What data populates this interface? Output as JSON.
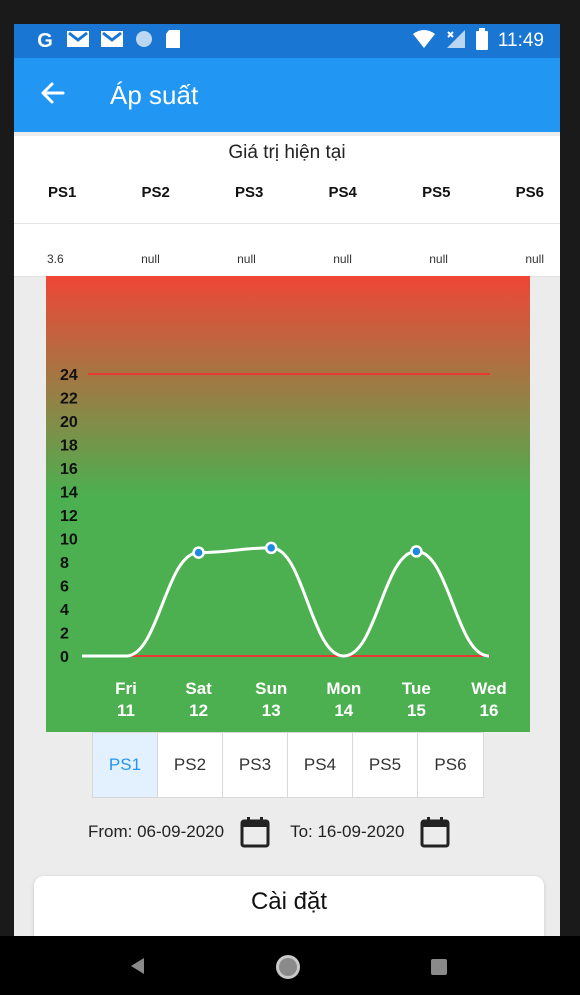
{
  "status_bar": {
    "icons": [
      "google-icon",
      "gmail-icon",
      "gmail-icon",
      "circle-icon",
      "sd-card-icon"
    ],
    "left_glyphs": [
      "G",
      "M",
      "M",
      "",
      ""
    ],
    "time": "11:49"
  },
  "app_bar": {
    "title": "Áp suất"
  },
  "current_values": {
    "title": "Giá trị hiện tại",
    "headers": [
      "PS1",
      "PS2",
      "PS3",
      "PS4",
      "PS5",
      "PS6"
    ],
    "values": [
      "3.6",
      "null",
      "null",
      "null",
      "null",
      "null"
    ]
  },
  "chart_data": {
    "type": "line",
    "x_labels": [
      {
        "day": "Fri",
        "date": "11"
      },
      {
        "day": "Sat",
        "date": "12"
      },
      {
        "day": "Sun",
        "date": "13"
      },
      {
        "day": "Mon",
        "date": "14"
      },
      {
        "day": "Tue",
        "date": "15"
      },
      {
        "day": "Wed",
        "date": "16"
      }
    ],
    "y_ticks": [
      "0",
      "2",
      "4",
      "6",
      "8",
      "10",
      "12",
      "14",
      "16",
      "18",
      "20",
      "22",
      "24"
    ],
    "ylim": [
      0,
      24
    ],
    "series": [
      {
        "x": [
          "Fri 11",
          "Sat 12",
          "Sun 13",
          "Mon 14",
          "Tue 15",
          "Wed 16"
        ],
        "values": [
          0,
          8.8,
          9.2,
          0,
          8.9,
          0
        ],
        "marked_points": [
          1,
          2,
          4
        ]
      }
    ],
    "threshold_lines": [
      24,
      0
    ],
    "line_color": "#ffffff",
    "threshold_color": "#e53935",
    "gradient_colors": [
      "#ef4637",
      "#4caf50"
    ]
  },
  "tabs": {
    "items": [
      "PS1",
      "PS2",
      "PS3",
      "PS4",
      "PS5",
      "PS6"
    ],
    "active_index": 0
  },
  "date_range": {
    "from_label": "From: 06-09-2020",
    "to_label": "To: 16-09-2020"
  },
  "settings": {
    "label": "Cài đặt"
  },
  "colors": {
    "primary": "#2196f3",
    "status_bar": "#1976d2"
  }
}
